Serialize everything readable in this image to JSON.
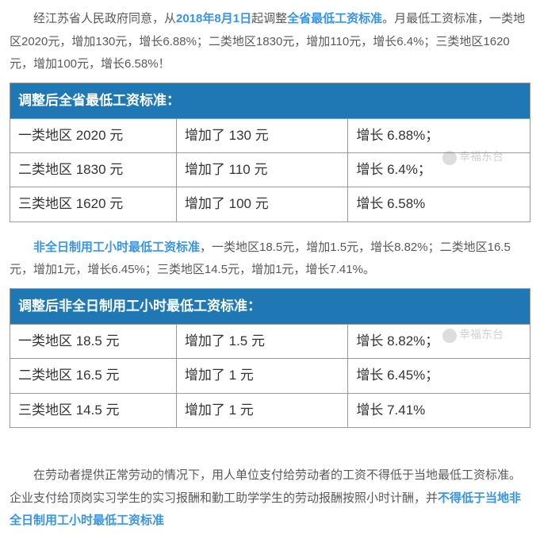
{
  "para1": {
    "pre": "经江苏省人民政府同意，从",
    "date": "2018年8月1日",
    "mid": "起调整",
    "scope": "全省最低工资标准",
    "post": "。月最低工资标准，一类地区2020元，增加130元，增长6.88%；二类地区1830元，增加110元，增长6.4%；三类地区1620元，增加100元，增长6.58%！"
  },
  "table1": {
    "title": "调整后全省最低工资标准：",
    "rows": [
      {
        "area": "一类地区 2020 元",
        "inc": "增加了 130 元",
        "growth": "增长 6.88%；"
      },
      {
        "area": "二类地区 1830 元",
        "inc": "增加了 110 元",
        "growth": "增长 6.4%；"
      },
      {
        "area": "三类地区 1620 元",
        "inc": "增加了 100 元",
        "growth": "增长 6.58%"
      }
    ]
  },
  "para2": {
    "label": "非全日制用工小时最低工资标准",
    "post": "，一类地区18.5元，增加1.5元，增长8.82%；二类地区16.5元，增加1元，增长6.45%；三类地区14.5元，增加1元，增长7.41%。"
  },
  "table2": {
    "title": "调整后非全日制用工小时最低工资标准：",
    "rows": [
      {
        "area": "一类地区 18.5 元",
        "inc": "增加了 1.5 元",
        "growth": "增长 8.82%；"
      },
      {
        "area": "二类地区 16.5 元",
        "inc": "增加了 1 元",
        "growth": "增长 6.45%；"
      },
      {
        "area": "三类地区 14.5 元",
        "inc": "增加了 1 元",
        "growth": "增长 7.41%"
      }
    ]
  },
  "para3": {
    "pre": "在劳动者提供正常劳动的情况下，用人单位支付给劳动者的工资不得低于当地最低工资标准。企业支付给顶岗实习学生的实习报酬和勤工助学学生的劳动报酬按照小时计酬，并",
    "hl": "不得低于当地非全日制用工小时最低工资标准"
  },
  "watermark": "幸福东台"
}
